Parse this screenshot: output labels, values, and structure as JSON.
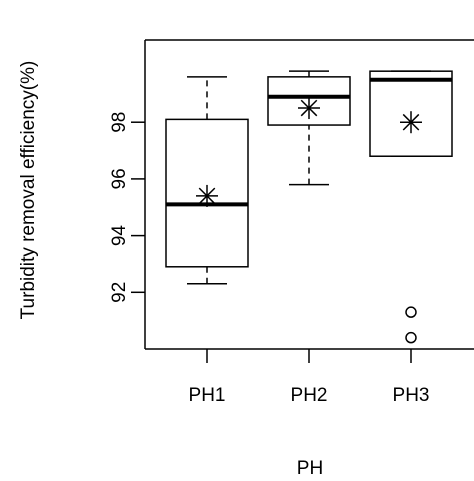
{
  "chart_data": {
    "type": "boxplot",
    "title": "",
    "xlabel": "PH",
    "ylabel": "Turbidity removal efficiency(%)",
    "ylim": [
      90,
      100.9
    ],
    "yticks": [
      92,
      94,
      96,
      98
    ],
    "categories": [
      "PH1",
      "PH2",
      "PH3"
    ],
    "boxes": [
      {
        "category": "PH1",
        "whisker_low": 92.3,
        "q1": 92.9,
        "median": 95.1,
        "q3": 98.1,
        "whisker_high": 99.6,
        "mean": 95.4,
        "outliers": []
      },
      {
        "category": "PH2",
        "whisker_low": 95.8,
        "q1": 97.9,
        "median": 98.9,
        "q3": 99.6,
        "whisker_high": 99.8,
        "mean": 98.5,
        "outliers": []
      },
      {
        "category": "PH3",
        "whisker_low": 96.8,
        "q1": 96.8,
        "median": 99.5,
        "q3": 99.8,
        "whisker_high": 99.8,
        "mean": 98.0,
        "outliers": [
          91.3,
          90.4
        ]
      }
    ],
    "mean_marker": "asterisk",
    "outlier_marker": "open-circle",
    "grid": false,
    "colors": {
      "stroke": "#000000",
      "background": "#ffffff"
    }
  }
}
